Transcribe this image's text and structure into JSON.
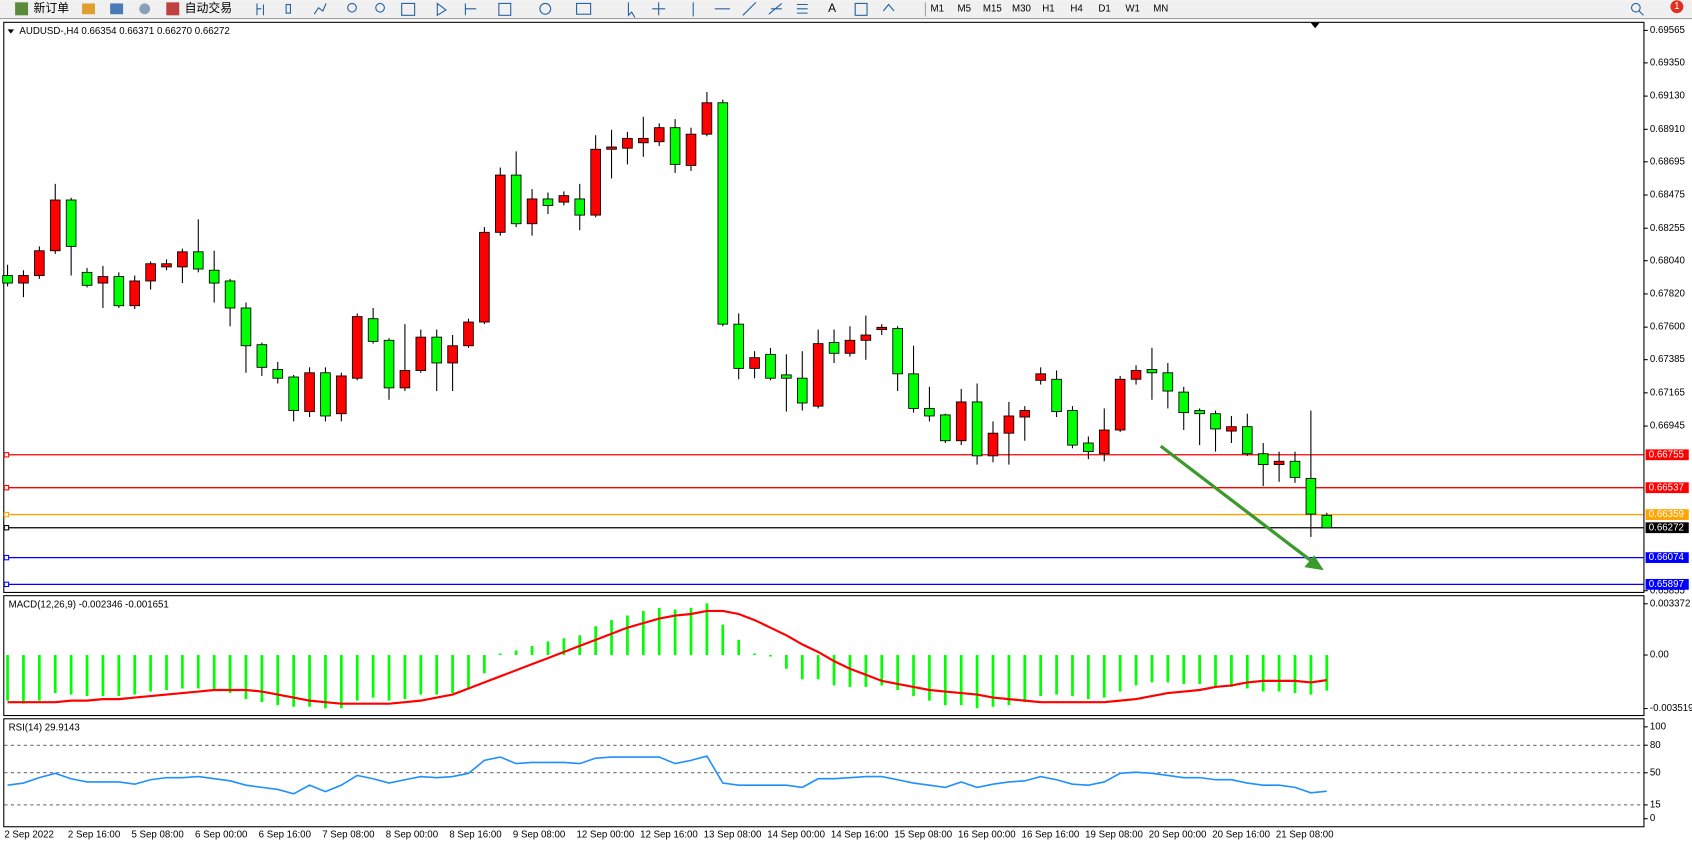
{
  "toolbar": {
    "new_order": "新订单",
    "auto_trading": "自动交易",
    "timeframes": [
      "M1",
      "M5",
      "M15",
      "M30",
      "H1",
      "H4",
      "D1",
      "W1",
      "MN"
    ],
    "notification": "1"
  },
  "chart_data": [
    {
      "type": "candlestick",
      "title": "AUDUSD-,H4  0.66354 0.66371 0.66270 0.66272",
      "categories": [
        "2 Sep 2022",
        null,
        null,
        null,
        "2 Sep 16:00",
        null,
        null,
        null,
        "5 Sep 08:00",
        null,
        null,
        null,
        "6 Sep 00:00",
        null,
        null,
        null,
        "6 Sep 16:00",
        null,
        null,
        null,
        "7 Sep 08:00",
        null,
        null,
        null,
        "8 Sep 00:00",
        null,
        null,
        null,
        "8 Sep 16:00",
        null,
        null,
        null,
        "9 Sep 08:00",
        null,
        null,
        null,
        "12 Sep 00:00",
        null,
        null,
        null,
        "12 Sep 16:00",
        null,
        null,
        null,
        "13 Sep 08:00",
        null,
        null,
        null,
        "14 Sep 00:00",
        null,
        null,
        null,
        "14 Sep 16:00",
        null,
        null,
        null,
        "15 Sep 08:00",
        null,
        null,
        null,
        "16 Sep 00:00",
        null,
        null,
        null,
        "16 Sep 16:00",
        null,
        null,
        null,
        "19 Sep 08:00",
        null,
        null,
        null,
        "20 Sep 00:00",
        null,
        null,
        null,
        "20 Sep 16:00",
        null,
        null,
        null,
        "21 Sep 08:00",
        null,
        null,
        null
      ],
      "open": [
        0.67942,
        0.67892,
        0.67942,
        0.68106,
        0.68442,
        0.67963,
        0.67892,
        0.67935,
        0.67742,
        0.67906,
        0.67999,
        0.67999,
        0.68099,
        0.67977,
        0.67906,
        0.67727,
        0.67484,
        0.6732,
        0.6727,
        0.67041,
        0.67298,
        0.67027,
        0.67262,
        0.67656,
        0.67513,
        0.67198,
        0.67313,
        0.67534,
        0.67363,
        0.67477,
        0.67634,
        0.68228,
        0.68607,
        0.68285,
        0.68449,
        0.68428,
        0.68449,
        0.68342,
        0.68778,
        0.68785,
        0.68821,
        0.68828,
        0.68921,
        0.68671,
        0.68878,
        0.69086,
        0.6762,
        0.67327,
        0.6742,
        0.67284,
        0.67262,
        0.67077,
        0.67498,
        0.67427,
        0.67513,
        0.67584,
        0.67591,
        0.67291,
        0.67062,
        0.67019,
        0.66848,
        0.67105,
        0.66748,
        0.66898,
        0.67005,
        0.67248,
        0.67255,
        0.67048,
        0.66833,
        0.66762,
        0.66919,
        0.67255,
        0.6732,
        0.67298,
        0.6717,
        0.67048,
        0.67027,
        0.66912,
        0.66941,
        0.66762,
        0.6669,
        0.66712,
        0.66598,
        0.66354
      ],
      "high": [
        0.68013,
        0.67977,
        0.68135,
        0.68549,
        0.68457,
        0.67992,
        0.68006,
        0.67963,
        0.67942,
        0.68035,
        0.68049,
        0.6812,
        0.68314,
        0.68106,
        0.6792,
        0.67763,
        0.67498,
        0.6737,
        0.67284,
        0.67334,
        0.67334,
        0.67298,
        0.67691,
        0.67727,
        0.67527,
        0.6762,
        0.67584,
        0.67584,
        0.67548,
        0.67656,
        0.68263,
        0.68657,
        0.68764,
        0.68514,
        0.68492,
        0.68499,
        0.68549,
        0.68871,
        0.68907,
        0.68893,
        0.68993,
        0.6895,
        0.68978,
        0.68921,
        0.69157,
        0.69107,
        0.67691,
        0.67441,
        0.67463,
        0.6742,
        0.67441,
        0.67584,
        0.67584,
        0.67606,
        0.67677,
        0.6762,
        0.67606,
        0.67477,
        0.67205,
        0.67027,
        0.67191,
        0.67227,
        0.66976,
        0.67105,
        0.67077,
        0.67334,
        0.67313,
        0.67077,
        0.66876,
        0.67062,
        0.67277,
        0.67348,
        0.67463,
        0.67363,
        0.67205,
        0.67062,
        0.67048,
        0.67012,
        0.67027,
        0.66833,
        0.66776,
        0.66776,
        0.67048,
        0.66371
      ],
      "low": [
        0.6787,
        0.67799,
        0.6792,
        0.68085,
        0.67942,
        0.67863,
        0.67727,
        0.67727,
        0.6772,
        0.67849,
        0.67977,
        0.67892,
        0.67963,
        0.67763,
        0.67606,
        0.67298,
        0.67277,
        0.67227,
        0.66976,
        0.67005,
        0.66976,
        0.66976,
        0.67248,
        0.67491,
        0.67119,
        0.67177,
        0.67298,
        0.67177,
        0.67177,
        0.67463,
        0.6762,
        0.68206,
        0.68263,
        0.68206,
        0.68349,
        0.68406,
        0.68242,
        0.68328,
        0.68585,
        0.68678,
        0.68728,
        0.688,
        0.68621,
        0.68635,
        0.68864,
        0.67606,
        0.67255,
        0.67262,
        0.67248,
        0.67041,
        0.67048,
        0.67062,
        0.67363,
        0.67405,
        0.67384,
        0.67548,
        0.67177,
        0.67034,
        0.66976,
        0.66833,
        0.66819,
        0.6669,
        0.66705,
        0.6669,
        0.66848,
        0.6722,
        0.67005,
        0.66798,
        0.66726,
        0.66712,
        0.66905,
        0.6722,
        0.67119,
        0.67062,
        0.66919,
        0.66819,
        0.66776,
        0.66833,
        0.66748,
        0.66547,
        0.66576,
        0.66569,
        0.66211,
        0.6627
      ],
      "close": [
        0.67892,
        0.67942,
        0.68106,
        0.68442,
        0.68135,
        0.67877,
        0.67935,
        0.67742,
        0.67906,
        0.6802,
        0.6802,
        0.68099,
        0.67985,
        0.67892,
        0.67727,
        0.67477,
        0.67334,
        0.67262,
        0.67048,
        0.67298,
        0.67012,
        0.67277,
        0.6767,
        0.67506,
        0.67198,
        0.67313,
        0.67534,
        0.67363,
        0.67477,
        0.67634,
        0.68228,
        0.68607,
        0.68285,
        0.68449,
        0.68406,
        0.68471,
        0.68342,
        0.68778,
        0.68793,
        0.6885,
        0.6885,
        0.68921,
        0.68678,
        0.68878,
        0.69086,
        0.6762,
        0.67327,
        0.67398,
        0.67262,
        0.67262,
        0.67098,
        0.67491,
        0.67427,
        0.67513,
        0.67548,
        0.67599,
        0.67291,
        0.67062,
        0.67012,
        0.66848,
        0.67105,
        0.66748,
        0.66898,
        0.67012,
        0.67048,
        0.67291,
        0.67041,
        0.66819,
        0.66776,
        0.66919,
        0.67255,
        0.67313,
        0.67298,
        0.67177,
        0.67034,
        0.67027,
        0.66926,
        0.66941,
        0.66762,
        0.6669,
        0.66712,
        0.66605,
        0.66362,
        0.66272
      ],
      "up_color": "#ff0000",
      "down_color": "#00ff00",
      "ylim": [
        0.65847,
        0.69615
      ],
      "yticks": [
        0.69565,
        {
          "value": 0.6935,
          "label": "0.69350"
        },
        {
          "value": 0.6913,
          "label": "0.69130"
        },
        {
          "value": 0.6891,
          "label": "0.68910"
        },
        0.68695,
        0.68475,
        0.68255,
        {
          "value": 0.6804,
          "label": "0.68040"
        },
        {
          "value": 0.6782,
          "label": "0.67820"
        },
        {
          "value": 0.676,
          "label": "0.67600"
        },
        0.67385,
        0.67165,
        0.66945,
        0.65855
      ],
      "price_lines": [
        {
          "value": 0.66755,
          "color": "#ff0000"
        },
        {
          "value": 0.66537,
          "color": "#ff0000"
        },
        {
          "value": 0.66359,
          "color": "#ffa500"
        },
        {
          "value": 0.66272,
          "color": "#000000"
        },
        {
          "value": 0.66074,
          "color": "#0000ff"
        },
        {
          "value": 0.65897,
          "color": "#0000ff"
        }
      ]
    },
    {
      "type": "macd",
      "title": "MACD(12,26,9) -0.002346 -0.001651",
      "histogram": {
        "color": "#00ff00",
        "values": [
          -0.003,
          -0.0032,
          -0.003,
          -0.0025,
          -0.0026,
          -0.0027,
          -0.0027,
          -0.0027,
          -0.0026,
          -0.0024,
          -0.0023,
          -0.0022,
          -0.0022,
          -0.0023,
          -0.0025,
          -0.0029,
          -0.0031,
          -0.0033,
          -0.0034,
          -0.0034,
          -0.0035,
          -0.0035,
          -0.003,
          -0.0028,
          -0.003,
          -0.0029,
          -0.0026,
          -0.0026,
          -0.0025,
          -0.0022,
          -0.0012,
          0.0001,
          0.0003,
          0.0006,
          0.0009,
          0.0011,
          0.0013,
          0.0019,
          0.0023,
          0.0026,
          0.0029,
          0.0031,
          0.003,
          0.0031,
          0.0034,
          0.002,
          0.001,
          0.0001,
          -0.0001,
          -0.0009,
          -0.0016,
          -0.0016,
          -0.002,
          -0.0021,
          -0.0021,
          -0.002,
          -0.0023,
          -0.0027,
          -0.003,
          -0.0033,
          -0.0033,
          -0.0035,
          -0.0034,
          -0.0033,
          -0.0031,
          -0.0027,
          -0.0026,
          -0.0027,
          -0.0029,
          -0.0028,
          -0.0024,
          -0.002,
          -0.0018,
          -0.0018,
          -0.0019,
          -0.0019,
          -0.0021,
          -0.0021,
          -0.0022,
          -0.0024,
          -0.0024,
          -0.0025,
          -0.0026,
          -0.002346
        ]
      },
      "signal": {
        "color": "#ff0000",
        "values": [
          -0.0031,
          -0.0031,
          -0.0031,
          -0.0031,
          -0.003,
          -0.003,
          -0.0029,
          -0.0029,
          -0.0028,
          -0.0027,
          -0.0026,
          -0.0025,
          -0.0024,
          -0.0023,
          -0.0023,
          -0.0023,
          -0.0024,
          -0.0026,
          -0.0028,
          -0.003,
          -0.0031,
          -0.0032,
          -0.0032,
          -0.0032,
          -0.0032,
          -0.0031,
          -0.003,
          -0.0028,
          -0.0026,
          -0.0022,
          -0.0018,
          -0.0014,
          -0.001,
          -0.0006,
          -0.0002,
          0.0002,
          0.0006,
          0.001,
          0.0014,
          0.0018,
          0.0021,
          0.0024,
          0.0026,
          0.0027,
          0.0029,
          0.0029,
          0.0027,
          0.0023,
          0.0018,
          0.0013,
          0.0007,
          0.0002,
          -0.0004,
          -0.0009,
          -0.0013,
          -0.0017,
          -0.0019,
          -0.0021,
          -0.0023,
          -0.0024,
          -0.0025,
          -0.0026,
          -0.0028,
          -0.0029,
          -0.003,
          -0.0031,
          -0.0031,
          -0.0031,
          -0.0031,
          -0.0031,
          -0.003,
          -0.0029,
          -0.0027,
          -0.0025,
          -0.0024,
          -0.0023,
          -0.0021,
          -0.002,
          -0.0018,
          -0.0017,
          -0.0017,
          -0.0017,
          -0.0018,
          -0.001651
        ]
      },
      "ylim": [
        -0.003945,
        0.003869
      ],
      "yticks": [
        0.003372,
        {
          "value": 0,
          "label": "0.00"
        },
        -0.003519
      ]
    },
    {
      "type": "rsi",
      "title": "RSI(14) 29.9143",
      "color": "#1e90ff",
      "values": [
        36.5,
        38.8,
        44.7,
        49.4,
        43.5,
        40.0,
        40.0,
        40.0,
        37.6,
        42.4,
        44.7,
        44.7,
        45.9,
        43.5,
        41.2,
        36.5,
        34.1,
        31.8,
        27.1,
        36.5,
        29.4,
        36.5,
        47.1,
        43.5,
        38.8,
        42.4,
        45.9,
        44.7,
        45.9,
        49.4,
        63.5,
        67.1,
        60.0,
        61.2,
        61.2,
        61.2,
        60.0,
        65.9,
        67.1,
        67.1,
        67.1,
        67.1,
        60.0,
        63.5,
        68.2,
        38.8,
        36.5,
        36.5,
        36.5,
        36.5,
        34.1,
        43.5,
        43.5,
        44.7,
        45.9,
        45.9,
        42.4,
        38.8,
        36.5,
        34.1,
        40.0,
        34.1,
        37.6,
        40.0,
        41.2,
        45.9,
        42.4,
        37.6,
        36.5,
        40.0,
        49.4,
        50.6,
        49.4,
        47.1,
        44.7,
        44.7,
        42.4,
        42.4,
        38.8,
        36.5,
        36.5,
        34.1,
        28.2,
        29.91
      ],
      "ylim": [
        -8.2,
        108.2
      ],
      "yticks": [
        100,
        80,
        50,
        15,
        0
      ],
      "grid": "dashed"
    }
  ]
}
